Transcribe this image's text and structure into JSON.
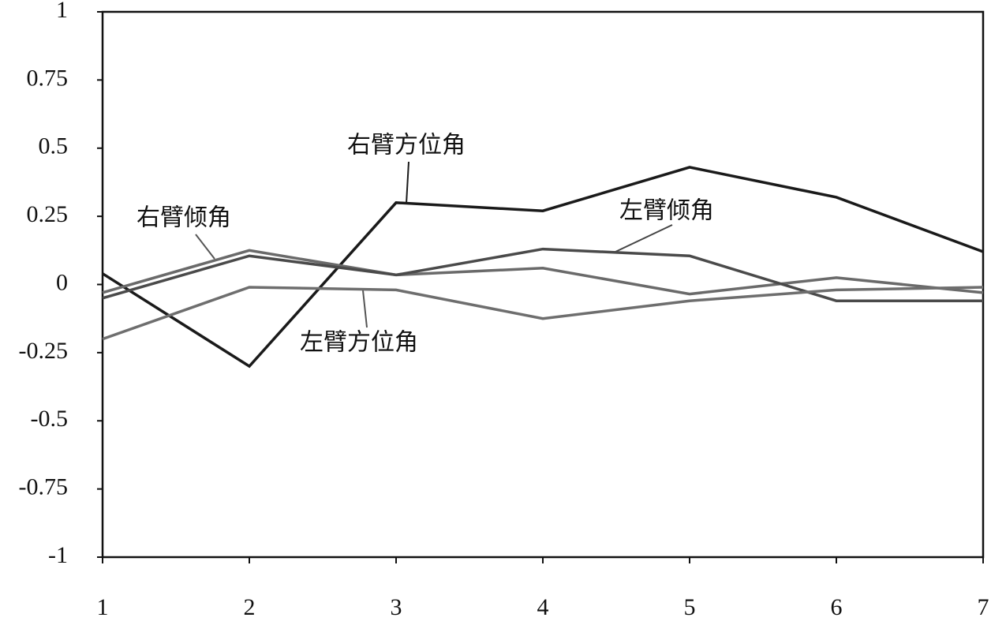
{
  "chart_data": {
    "type": "line",
    "x": [
      1,
      2,
      3,
      4,
      5,
      6,
      7
    ],
    "xlim": [
      1,
      7
    ],
    "xticks": [
      1,
      2,
      3,
      4,
      5,
      6,
      7
    ],
    "ylim": [
      -1,
      1
    ],
    "yticks": [
      1,
      0.75,
      0.5,
      0.25,
      0,
      -0.25,
      -0.5,
      -0.75,
      -1
    ],
    "series": [
      {
        "name": "右臂方位角",
        "color": "#1a1a1a",
        "values": [
          0.04,
          -0.3,
          0.3,
          0.27,
          0.43,
          0.32,
          0.12
        ]
      },
      {
        "name": "右臂倾角",
        "color": "#6a6a6a",
        "values": [
          -0.03,
          0.125,
          0.035,
          0.06,
          -0.035,
          0.025,
          -0.03
        ]
      },
      {
        "name": "左臂倾角",
        "color": "#4a4a4a",
        "values": [
          -0.05,
          0.105,
          0.035,
          0.13,
          0.105,
          -0.06,
          -0.06
        ]
      },
      {
        "name": "左臂方位角",
        "color": "#6e6e6e",
        "values": [
          -0.2,
          -0.01,
          -0.02,
          -0.125,
          -0.06,
          -0.02,
          -0.01
        ]
      }
    ]
  }
}
